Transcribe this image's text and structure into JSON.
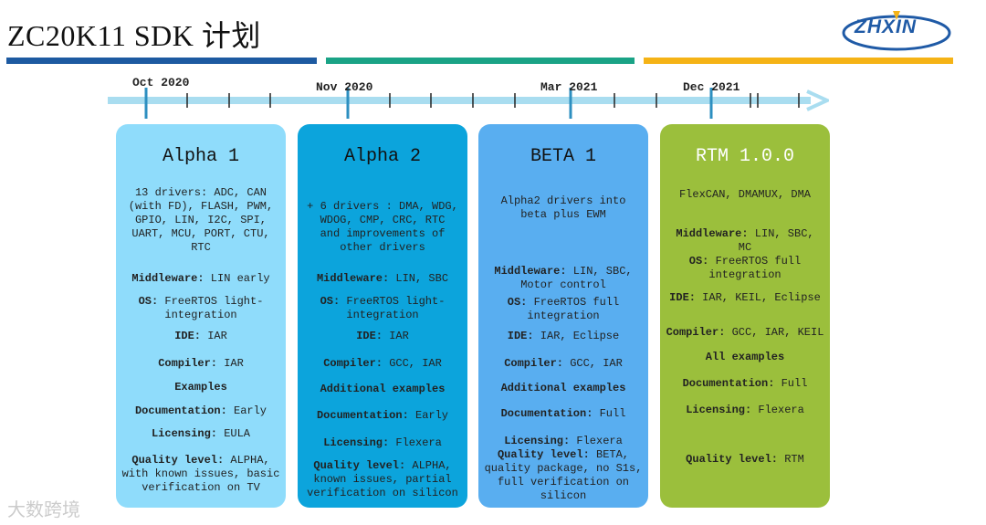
{
  "header": {
    "title": "ZC20K11 SDK 计划",
    "logo_text": "ZHXIN"
  },
  "colors": {
    "bar_blue": "#1d5aa1",
    "bar_green": "#1aa386",
    "bar_yellow": "#f5b316",
    "timeline": "#a9ddf0",
    "tick_major": "#2d8fc0",
    "card1": "#8fdcfb",
    "card2": "#0ca4dc",
    "card3": "#59aef0",
    "card4": "#9bbf3c",
    "card4_title": "#ffffff"
  },
  "timeline": {
    "dates": [
      "Oct 2020",
      "Nov 2020",
      "Mar 2021",
      "Dec 2021"
    ]
  },
  "cards": [
    {
      "title": "Alpha 1",
      "lines": [
        [
          "",
          "13 drivers: ADC, CAN"
        ],
        [
          "",
          "(with FD), FLASH, PWM,"
        ],
        [
          "",
          "GPIO, LIN, I2C, SPI,"
        ],
        [
          "",
          "UART, MCU,  PORT, CTU,"
        ],
        [
          "",
          "RTC"
        ],
        [
          "Middleware:",
          " LIN early"
        ],
        [
          "OS:",
          " FreeRTOS light-"
        ],
        [
          "",
          "integration"
        ],
        [
          "IDE:",
          " IAR"
        ],
        [
          "Compiler:",
          " IAR"
        ],
        [
          "Examples",
          ""
        ],
        [
          "Documentation:",
          " Early"
        ],
        [
          "Licensing:",
          " EULA"
        ],
        [
          "Quality level:",
          " ALPHA,"
        ],
        [
          "",
          "with known issues, basic"
        ],
        [
          "",
          "verification on TV"
        ]
      ]
    },
    {
      "title": "Alpha 2",
      "lines": [
        [
          "",
          "+ 6 drivers : DMA, WDG,"
        ],
        [
          "",
          "WDOG, CMP, CRC, RTC"
        ],
        [
          "",
          "and improvements of"
        ],
        [
          "",
          "other drivers"
        ],
        [
          "Middleware:",
          " LIN, SBC"
        ],
        [
          "OS:",
          " FreeRTOS light-"
        ],
        [
          "",
          "integration"
        ],
        [
          "IDE:",
          " IAR"
        ],
        [
          "Compiler:",
          " GCC, IAR"
        ],
        [
          "Additional examples",
          ""
        ],
        [
          "Documentation:",
          " Early"
        ],
        [
          "Licensing:",
          " Flexera"
        ],
        [
          "Quality level:",
          " ALPHA,"
        ],
        [
          "",
          "known issues, partial"
        ],
        [
          "",
          "verification on silicon"
        ]
      ]
    },
    {
      "title": "BETA 1",
      "lines": [
        [
          "",
          "Alpha2 drivers into"
        ],
        [
          "",
          "beta plus EWM"
        ],
        [
          "Middleware:",
          " LIN, SBC,"
        ],
        [
          "",
          "Motor control"
        ],
        [
          "OS:",
          " FreeRTOS full"
        ],
        [
          "",
          "integration"
        ],
        [
          "IDE:",
          " IAR, Eclipse"
        ],
        [
          "Compiler:",
          " GCC, IAR"
        ],
        [
          "Additional examples",
          ""
        ],
        [
          "Documentation:",
          " Full"
        ],
        [
          "Licensing:",
          " Flexera"
        ],
        [
          "Quality level:",
          " BETA,"
        ],
        [
          "",
          "quality package, no S1s,"
        ],
        [
          "",
          "full verification on"
        ],
        [
          "",
          "silicon"
        ]
      ]
    },
    {
      "title": "RTM 1.0.0",
      "lines": [
        [
          "",
          "FlexCAN, DMAMUX, DMA"
        ],
        [
          "Middleware:",
          " LIN, SBC,"
        ],
        [
          "",
          "MC"
        ],
        [
          "OS:",
          " FreeRTOS full"
        ],
        [
          "",
          "integration"
        ],
        [
          "IDE:",
          " IAR, KEIL, Eclipse"
        ],
        [
          "Compiler:",
          " GCC, IAR, KEIL"
        ],
        [
          "All examples",
          ""
        ],
        [
          "Documentation:",
          " Full"
        ],
        [
          "Licensing:",
          " Flexera"
        ],
        [
          "Quality level:",
          " RTM"
        ]
      ]
    }
  ],
  "watermark": "大数跨境"
}
